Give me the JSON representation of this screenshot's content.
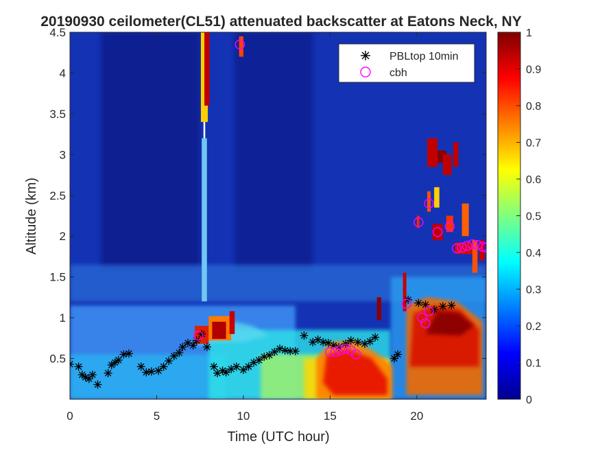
{
  "chart_data": {
    "type": "heatmap",
    "title": "20190930 ceilometer(CL51) attenuated backscatter at Eatons Neck, NY",
    "xlabel": "Time (UTC hour)",
    "ylabel": "Altitude (km)",
    "xlim": [
      0,
      24
    ],
    "ylim": [
      0,
      4.5
    ],
    "x_ticks": [
      "0",
      "5",
      "10",
      "15",
      "20"
    ],
    "y_ticks": [
      "0.5",
      "1",
      "1.5",
      "2",
      "2.5",
      "3",
      "3.5",
      "4",
      "4.5"
    ],
    "colorbar": {
      "colormap": "jet",
      "range": [
        0,
        1
      ],
      "ticks": [
        "0",
        "0.1",
        "0.2",
        "0.3",
        "0.4",
        "0.5",
        "0.6",
        "0.7",
        "0.8",
        "0.9",
        "1"
      ]
    },
    "legend": {
      "placement": "top-right",
      "entries": [
        {
          "label": "PBLtop 10min",
          "marker": "asterisk",
          "color": "#000000"
        },
        {
          "label": "cbh",
          "marker": "circle",
          "color": "#ff00ff"
        }
      ]
    },
    "series": [
      {
        "name": "PBLtop 10min",
        "points": [
          [
            0.0,
            0.43
          ],
          [
            0.5,
            0.4
          ],
          [
            0.7,
            0.3
          ],
          [
            0.9,
            0.27
          ],
          [
            1.1,
            0.25
          ],
          [
            1.3,
            0.3
          ],
          [
            1.6,
            0.18
          ],
          [
            2.2,
            0.32
          ],
          [
            2.4,
            0.42
          ],
          [
            2.6,
            0.45
          ],
          [
            2.8,
            0.48
          ],
          [
            3.1,
            0.55
          ],
          [
            3.4,
            0.56
          ],
          [
            4.1,
            0.4
          ],
          [
            4.4,
            0.33
          ],
          [
            4.7,
            0.34
          ],
          [
            5.1,
            0.35
          ],
          [
            5.4,
            0.4
          ],
          [
            5.7,
            0.47
          ],
          [
            6.0,
            0.53
          ],
          [
            6.3,
            0.57
          ],
          [
            6.5,
            0.64
          ],
          [
            6.8,
            0.69
          ],
          [
            7.1,
            0.66
          ],
          [
            7.3,
            0.72
          ],
          [
            7.6,
            0.8
          ],
          [
            7.9,
            0.64
          ],
          [
            8.3,
            0.4
          ],
          [
            8.5,
            0.32
          ],
          [
            8.8,
            0.35
          ],
          [
            9.0,
            0.33
          ],
          [
            9.3,
            0.37
          ],
          [
            9.6,
            0.4
          ],
          [
            10.0,
            0.36
          ],
          [
            10.3,
            0.4
          ],
          [
            10.6,
            0.45
          ],
          [
            10.9,
            0.48
          ],
          [
            11.2,
            0.52
          ],
          [
            11.5,
            0.54
          ],
          [
            11.8,
            0.58
          ],
          [
            12.1,
            0.62
          ],
          [
            12.4,
            0.6
          ],
          [
            12.7,
            0.59
          ],
          [
            13.0,
            0.59
          ],
          [
            13.5,
            0.78
          ],
          [
            14.0,
            0.7
          ],
          [
            14.3,
            0.73
          ],
          [
            14.6,
            0.7
          ],
          [
            14.9,
            0.69
          ],
          [
            15.2,
            0.66
          ],
          [
            15.5,
            0.64
          ],
          [
            15.9,
            0.68
          ],
          [
            16.2,
            0.72
          ],
          [
            16.6,
            0.7
          ],
          [
            17.0,
            0.68
          ],
          [
            17.3,
            0.71
          ],
          [
            17.6,
            0.76
          ],
          [
            18.7,
            0.5
          ],
          [
            18.9,
            0.55
          ],
          [
            19.5,
            1.22
          ],
          [
            20.1,
            1.18
          ],
          [
            20.5,
            1.16
          ],
          [
            21.0,
            1.1
          ],
          [
            21.5,
            1.14
          ],
          [
            22.0,
            1.15
          ]
        ]
      },
      {
        "name": "cbh",
        "points": [
          [
            7.4,
            0.78
          ],
          [
            9.8,
            4.35
          ],
          [
            15.0,
            0.58
          ],
          [
            15.3,
            0.58
          ],
          [
            15.6,
            0.6
          ],
          [
            15.9,
            0.62
          ],
          [
            16.2,
            0.6
          ],
          [
            16.5,
            0.55
          ],
          [
            19.4,
            1.17
          ],
          [
            20.1,
            2.17
          ],
          [
            20.3,
            1.0
          ],
          [
            20.5,
            0.93
          ],
          [
            20.7,
            1.08
          ],
          [
            20.7,
            2.4
          ],
          [
            21.2,
            2.05
          ],
          [
            21.9,
            2.12
          ],
          [
            22.3,
            1.85
          ],
          [
            22.6,
            1.86
          ],
          [
            22.9,
            1.88
          ],
          [
            23.2,
            1.9
          ],
          [
            23.5,
            1.89
          ],
          [
            23.8,
            1.87
          ],
          [
            24.0,
            1.86
          ]
        ]
      }
    ]
  }
}
